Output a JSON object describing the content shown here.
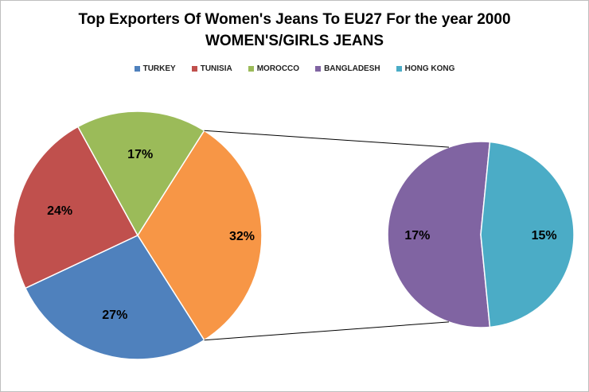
{
  "chart_data": {
    "type": "pie",
    "variant": "pie-of-pie",
    "title": "Top Exporters Of Women's Jeans To EU27 For the year 2000",
    "subtitle": "WOMEN'S/GIRLS  JEANS",
    "legend_position": "top",
    "categories": [
      "TURKEY",
      "TUNISIA",
      "MOROCCO",
      "BANGLADESH",
      "HONG KONG"
    ],
    "values": [
      27,
      24,
      17,
      17,
      15
    ],
    "labels": [
      "27%",
      "24%",
      "17%",
      "17%",
      "15%"
    ],
    "colors": [
      "#4f81bd",
      "#c0504d",
      "#9bbb59",
      "#8064a2",
      "#4bacc6"
    ],
    "other_slice": {
      "value": 32,
      "label": "32%",
      "color": "#f79646",
      "breaks_into": [
        "BANGLADESH",
        "HONG KONG"
      ]
    }
  }
}
